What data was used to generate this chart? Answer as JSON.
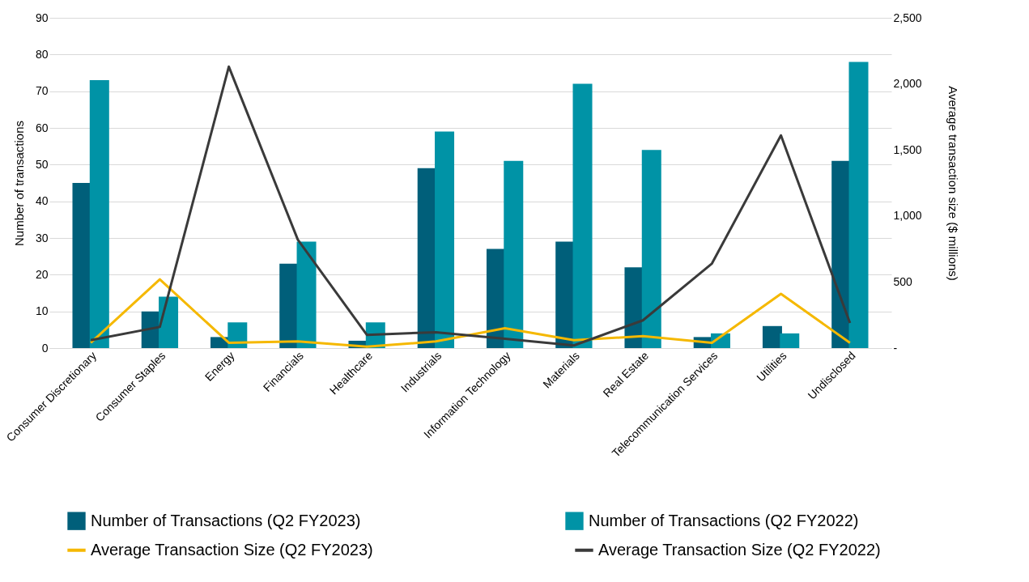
{
  "chart_data": {
    "type": "bar",
    "categories": [
      "Consumer Discretionary",
      "Consumer Staples",
      "Energy",
      "Financials",
      "Healthcare",
      "Industrials",
      "Information Technology",
      "Materials",
      "Real Estate",
      "Telecommunication Services",
      "Utilities",
      "Undisclosed"
    ],
    "series": [
      {
        "name": "Number of Transactions (Q2 FY2023)",
        "color": "#005f7a",
        "values": [
          45,
          10,
          3,
          23,
          2,
          49,
          27,
          29,
          22,
          3,
          6,
          51
        ]
      },
      {
        "name": "Number of Transactions (Q2 FY2022)",
        "color": "#0093a6",
        "values": [
          73,
          14,
          7,
          29,
          7,
          59,
          51,
          72,
          54,
          4,
          4,
          78
        ]
      },
      {
        "name": "Average Transaction Size (Q2 FY2023)",
        "type": "line",
        "axis": "y2",
        "color": "#f5b800",
        "values": [
          40,
          520,
          40,
          50,
          10,
          50,
          150,
          60,
          90,
          40,
          410,
          40
        ]
      },
      {
        "name": "Average Transaction Size (Q2 FY2022)",
        "type": "line",
        "axis": "y2",
        "color": "#3a3a3a",
        "values": [
          60,
          160,
          2130,
          820,
          100,
          120,
          70,
          20,
          210,
          640,
          1610,
          190
        ]
      }
    ],
    "ylabel": "Number of transactions",
    "y2label": "Average transaction size ($ millions)",
    "ylim": [
      0,
      90
    ],
    "yticks": [
      0,
      10,
      20,
      30,
      40,
      50,
      60,
      70,
      80,
      90
    ],
    "y2lim": [
      0,
      2500
    ],
    "y2ticks": [
      {
        "value": 0,
        "label": "-"
      },
      {
        "value": 500,
        "label": "500"
      },
      {
        "value": 1000,
        "label": "1,000"
      },
      {
        "value": 1500,
        "label": "1,500"
      },
      {
        "value": 2000,
        "label": "2,000"
      },
      {
        "value": 2500,
        "label": "2,500"
      }
    ],
    "grid": "y",
    "legend": "bottom",
    "marker": "none",
    "line_style": "solid"
  }
}
